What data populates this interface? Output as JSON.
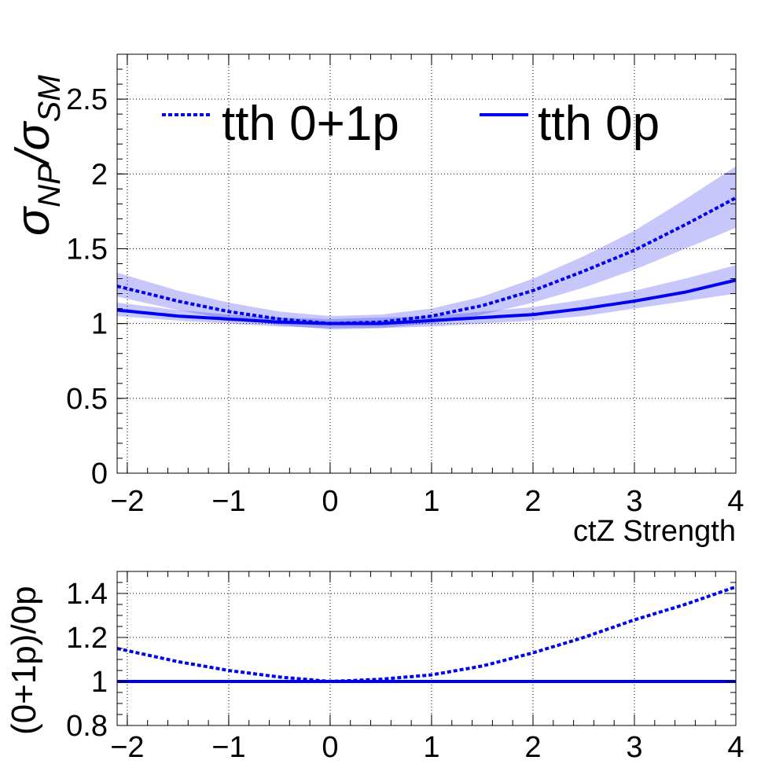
{
  "chart_data": [
    {
      "type": "line",
      "xlabel": "ctZ Strength",
      "ylabel_main": "σ",
      "ylabel_sub1": "NP",
      "ylabel_slash": "/σ",
      "ylabel_sub2": "SM",
      "xlim": [
        -2.1,
        4.0
      ],
      "ylim": [
        0,
        2.8
      ],
      "grid": true,
      "legend": "top",
      "x_ticks": [
        "−2",
        "−1",
        "0",
        "1",
        "2",
        "3",
        "4"
      ],
      "y_ticks": [
        "0",
        "0.5",
        "1",
        "1.5",
        "2",
        "2.5"
      ],
      "color": "#0000ee",
      "series": [
        {
          "name": "tth 0+1p",
          "style": "dotted",
          "x": [
            -2.1,
            -1.5,
            -1.0,
            -0.5,
            0.0,
            0.5,
            1.0,
            1.5,
            2.0,
            2.5,
            3.0,
            3.5,
            4.0
          ],
          "values": [
            1.25,
            1.15,
            1.08,
            1.03,
            1.0,
            1.01,
            1.05,
            1.12,
            1.22,
            1.35,
            1.49,
            1.66,
            1.84
          ],
          "band_low": [
            1.18,
            1.09,
            1.03,
            0.99,
            0.96,
            0.97,
            1.0,
            1.06,
            1.14,
            1.24,
            1.36,
            1.5,
            1.64
          ],
          "band_high": [
            1.34,
            1.22,
            1.14,
            1.08,
            1.05,
            1.06,
            1.1,
            1.18,
            1.3,
            1.45,
            1.62,
            1.83,
            2.05
          ]
        },
        {
          "name": "tth 0p",
          "style": "solid",
          "x": [
            -2.1,
            -1.5,
            -1.0,
            -0.5,
            0.0,
            0.5,
            1.0,
            1.5,
            2.0,
            2.5,
            3.0,
            3.5,
            4.0
          ],
          "values": [
            1.09,
            1.05,
            1.03,
            1.01,
            1.0,
            1.0,
            1.02,
            1.04,
            1.06,
            1.1,
            1.15,
            1.21,
            1.29
          ],
          "band_low": [
            1.05,
            1.02,
            1.0,
            0.98,
            0.97,
            0.97,
            0.98,
            1.0,
            1.02,
            1.05,
            1.1,
            1.15,
            1.2
          ],
          "band_high": [
            1.14,
            1.09,
            1.06,
            1.04,
            1.03,
            1.04,
            1.05,
            1.08,
            1.11,
            1.16,
            1.22,
            1.3,
            1.39
          ]
        }
      ]
    },
    {
      "type": "line",
      "ylabel": "(0+1p)/0p",
      "xlim": [
        -2.1,
        4.0
      ],
      "ylim": [
        0.8,
        1.5
      ],
      "grid": true,
      "x_ticks": [
        "−2",
        "−1",
        "0",
        "1",
        "2",
        "3",
        "4"
      ],
      "y_ticks": [
        "0.8",
        "1",
        "1.2",
        "1.4"
      ],
      "color": "#0000ee",
      "series": [
        {
          "style": "dotted",
          "x": [
            -2.1,
            -1.5,
            -1.0,
            -0.5,
            0.0,
            0.5,
            1.0,
            1.5,
            2.0,
            2.5,
            3.0,
            3.5,
            4.0
          ],
          "values": [
            1.15,
            1.09,
            1.05,
            1.02,
            1.0,
            1.01,
            1.03,
            1.07,
            1.13,
            1.2,
            1.28,
            1.35,
            1.43
          ]
        },
        {
          "style": "solid",
          "x": [
            -2.1,
            4.0
          ],
          "values": [
            1.0,
            1.0
          ]
        }
      ]
    }
  ]
}
